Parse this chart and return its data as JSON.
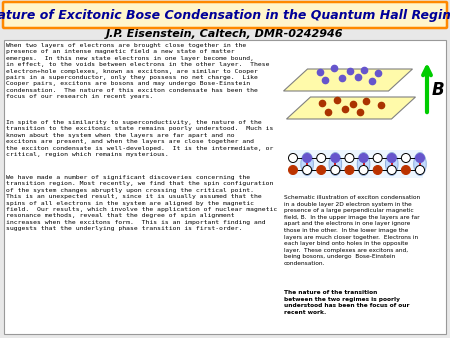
{
  "title": "Nature of Excitonic Bose Condensation in the Quantum Hall Regime",
  "subtitle": "J.P. Eisenstein, Caltech, DMR-0242946",
  "title_color": "#000099",
  "title_bg": "#FFF5CC",
  "title_border": "#FF8800",
  "background": "#E8E8E8",
  "main_box_bg": "#FFFFFF",
  "main_box_border": "#999999",
  "body_text_para1": "When two layers of electrons are brought close together in the\npresence of an intense magnetic field a new state of matter\nemerges.  In this new state electrons in one layer become bound,\nin effect, to the voids between electrons in the other layer.  These\nelectron+hole complexes, known as excitons, are similar to Cooper\npairs in a superconductor, only they possess no net charge.  Like\nCooper pairs, excitons are bosons and may undergo Bose-Einstein\ncondensation.  The nature of this exciton condensate has been the\nfocus of our research in recent years.",
  "body_text_para2": "In spite of the similarity to superconductivity, the nature of the\ntransition to the excitonic state remains poorly understood.  Much is\nknown about the system when the layers are far apart and no\nexcitons are present, and when the layers are close together and\nthe exciton condensate is well-developed.  It is the intermediate, or\ncritical, region which remains mysterious.",
  "body_text_para3": "We have made a number of significant discoveries concerning the\ntransition region. Most recently, we find that the spin configuration\nof the system changes abruptly upon crossing the critical point.\nThis is an unexpected result, since it is usually assumed that the\nspins of all electrons in the system are aligned by the magnetic\nfield.  Our results, which involve the application of nuclear magnetic\nresonance methods, reveal that the degree of spin alignment\nincreases when the excitons form.  This is an important finding and\nsuggests that the underlying phase transition is first-order.",
  "caption_normal": "Schematic illustration of exciton condensation\nin a double layer 2D electron system in the\npresence of a large perpendicular magnetic\nfield, B.  In the upper image the layers are far\napart and the electrons in one layer ignore\nthose in the other.  In the lower image the\nlayers are much closer together.  Electrons in\neach layer bind onto holes in the opposite\nlayer.  These complexes are excitons and,\nbeing bosons, undergo  Bose-Einstein\ncondensation.",
  "caption_bold": "The nature of the transition\nbetween the two regimes is poorly\nunderstood has been the focus of our\nrecent work.",
  "upper_dot_color": "#6655CC",
  "lower_dot_color": "#AA3300",
  "layer_fill": "#FFFAAA",
  "arrow_color": "#00CC00",
  "B_label": "B",
  "pair_top_fill": "#6655CC",
  "pair_bot_fill": "#BB3300",
  "ellipse_color": "#AACCFF",
  "bond_color": "#CC0000",
  "line_color": "#000000"
}
